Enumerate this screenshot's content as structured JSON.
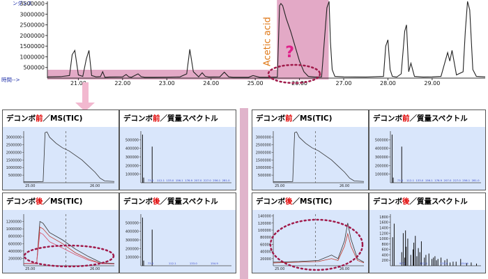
{
  "tic": {
    "ylabel_fragment": "ンダンス",
    "xlabel": "時間-->",
    "y_ticks": [
      "3500000",
      "3000000",
      "2500000",
      "2000000",
      "1500000",
      "1000000",
      "500000"
    ],
    "x_ticks": [
      "21.00",
      "22.00",
      "23.00",
      "24.00",
      "25.00",
      "26.00",
      "27.00",
      "28.00",
      "29.00"
    ],
    "annotation": "Acetic acid",
    "question": "?",
    "colors": {
      "line": "#222222",
      "highlight": "#d98cb3",
      "ellipse": "#a01a4a",
      "annotation": "#e07a1a",
      "question": "#e0208a"
    }
  },
  "chart_data": [
    {
      "type": "line",
      "title": "",
      "xlabel": "時間-->",
      "ylabel": "",
      "xlim": [
        20.3,
        30.2
      ],
      "ylim": [
        0,
        3600000
      ],
      "series": [
        {
          "x": [
            20.3,
            20.6,
            20.8,
            20.86,
            20.92,
            21.0,
            21.1,
            21.18,
            21.24,
            21.3,
            21.4,
            21.5,
            21.55,
            21.6,
            21.7,
            22.0,
            22.08,
            22.14,
            22.2,
            22.35,
            22.42,
            22.5,
            22.7,
            23.0,
            23.3,
            23.45,
            23.52,
            23.6,
            23.72,
            23.8,
            23.87,
            23.95,
            24.2,
            24.3,
            24.4,
            24.5,
            24.7,
            24.85,
            24.95,
            25.1,
            25.3,
            25.5,
            25.55,
            25.58,
            25.62,
            25.7,
            25.8,
            25.9,
            26.0,
            26.1,
            26.2,
            26.35,
            26.5,
            26.62,
            26.67,
            26.7,
            26.74,
            26.8,
            27.0,
            27.5,
            27.9,
            27.95,
            28.0,
            28.05,
            28.1,
            28.2,
            28.3,
            28.38,
            28.42,
            28.47,
            28.52,
            28.6,
            28.8,
            29.0,
            29.2,
            29.35,
            29.4,
            29.45,
            29.55,
            29.7,
            29.75,
            29.8,
            29.85,
            29.92,
            30.0,
            30.2
          ],
          "y": [
            60000,
            70000,
            120000,
            1100000,
            1300000,
            150000,
            80000,
            900000,
            1300000,
            120000,
            60000,
            70000,
            300000,
            40000,
            50000,
            60000,
            170000,
            60000,
            40000,
            200000,
            70000,
            40000,
            40000,
            45000,
            60000,
            200000,
            1350000,
            300000,
            60000,
            250000,
            80000,
            50000,
            60000,
            280000,
            60000,
            40000,
            40000,
            40000,
            120000,
            40000,
            40000,
            50000,
            3400000,
            3500000,
            3400000,
            2800000,
            2200000,
            1500000,
            800000,
            300000,
            80000,
            50000,
            60000,
            3300000,
            3600000,
            1700000,
            400000,
            80000,
            60000,
            50000,
            80000,
            1500000,
            1800000,
            400000,
            80000,
            50000,
            200000,
            2200000,
            2500000,
            300000,
            700000,
            80000,
            50000,
            60000,
            80000,
            1200000,
            800000,
            1300000,
            150000,
            300000,
            2200000,
            3600000,
            3200000,
            400000,
            80000,
            60000
          ]
        }
      ]
    },
    {
      "type": "line",
      "title": "デコンボ前／MS(TIC)",
      "xlim": [
        24.9,
        26.3
      ],
      "ylim": [
        0,
        3400000
      ],
      "x_ticks": [
        "25.00",
        "26.00"
      ],
      "y_ticks": [
        "3000000",
        "2500000",
        "2000000",
        "1500000",
        "1000000",
        "500000"
      ],
      "series": [
        {
          "x": [
            24.9,
            25.1,
            25.2,
            25.23,
            25.26,
            25.3,
            25.4,
            25.5,
            25.6,
            25.7,
            25.8,
            25.9,
            26.0,
            26.08,
            26.15,
            26.3
          ],
          "y": [
            60000,
            60000,
            80000,
            3300000,
            3350000,
            3000000,
            2600000,
            2300000,
            2100000,
            1800000,
            1500000,
            1100000,
            700000,
            300000,
            120000,
            80000
          ]
        }
      ]
    },
    {
      "type": "bar",
      "title": "デコンボ前／質量スペクトル",
      "xlim": [
        40,
        200
      ],
      "ylim": [
        0,
        600000
      ],
      "y_ticks": [
        "500000",
        "400000",
        "300000",
        "200000",
        "100000"
      ],
      "series": [
        {
          "x": [
            43,
            45,
            60
          ],
          "y": [
            560000,
            60000,
            420000
          ]
        }
      ],
      "labels": [
        "73.0",
        "112.1",
        "133.0",
        "156.1",
        "176.9",
        "207.0",
        "227.0",
        "256.1",
        "281.0"
      ]
    },
    {
      "type": "line",
      "title": "デコンボ後／MS(TIC)",
      "xlim": [
        24.9,
        26.3
      ],
      "ylim": [
        0,
        1400000
      ],
      "x_ticks": [
        "25.00",
        "26.00"
      ],
      "y_ticks": [
        "1200000",
        "1000000",
        "800000",
        "600000",
        "400000",
        "200000"
      ],
      "series": [
        {
          "x": [
            24.9,
            25.1,
            25.15,
            25.2,
            25.3,
            25.5,
            25.7,
            25.9,
            26.1,
            26.3
          ],
          "y": [
            60000,
            60000,
            1200000,
            1150000,
            900000,
            700000,
            450000,
            250000,
            80000,
            60000
          ]
        },
        {
          "x": [
            24.9,
            25.1,
            25.15,
            25.2,
            25.3,
            25.5,
            25.7,
            25.9,
            26.1,
            26.3
          ],
          "y": [
            60000,
            60000,
            1050000,
            1000000,
            800000,
            600000,
            350000,
            180000,
            60000,
            50000
          ]
        },
        {
          "x": [
            24.9,
            25.1,
            25.15,
            25.2,
            25.3,
            25.5,
            25.7,
            25.9,
            26.1,
            26.3
          ],
          "y": [
            60000,
            60000,
            900000,
            850000,
            650000,
            480000,
            300000,
            150000,
            60000,
            50000
          ]
        }
      ]
    },
    {
      "type": "bar",
      "title": "デコンボ後／質量スペクトル",
      "xlim": [
        40,
        200
      ],
      "ylim": [
        0,
        600000
      ],
      "y_ticks": [
        "500000",
        "400000",
        "300000",
        "200000",
        "100000"
      ],
      "series": [
        {
          "x": [
            43,
            45,
            60
          ],
          "y": [
            560000,
            60000,
            420000
          ]
        }
      ],
      "labels": [
        "73.0",
        "112.1",
        "133.0",
        "154.9"
      ]
    },
    {
      "type": "line",
      "title": "デコンボ前／MS(TIC)",
      "xlim": [
        24.9,
        26.3
      ],
      "ylim": [
        0,
        3400000
      ],
      "x_ticks": [
        "25.00",
        "26.00"
      ],
      "y_ticks": [
        "3000000",
        "2500000",
        "2000000",
        "1500000",
        "1000000",
        "500000"
      ],
      "series": [
        {
          "x": [
            24.9,
            25.1,
            25.2,
            25.23,
            25.26,
            25.3,
            25.4,
            25.5,
            25.6,
            25.7,
            25.8,
            25.9,
            26.0,
            26.08,
            26.15,
            26.3
          ],
          "y": [
            60000,
            60000,
            80000,
            3300000,
            3350000,
            3000000,
            2600000,
            2300000,
            2100000,
            1800000,
            1500000,
            1100000,
            700000,
            300000,
            120000,
            80000
          ]
        }
      ]
    },
    {
      "type": "bar",
      "title": "デコンボ前／質量スペクトル",
      "xlim": [
        40,
        200
      ],
      "ylim": [
        0,
        600000
      ],
      "y_ticks": [
        "500000",
        "400000",
        "300000",
        "200000",
        "100000"
      ],
      "series": [
        {
          "x": [
            43,
            45,
            60
          ],
          "y": [
            560000,
            60000,
            420000
          ]
        }
      ],
      "labels": [
        "73.0",
        "112.1",
        "133.0",
        "156.1",
        "176.9",
        "207.0",
        "227.0",
        "256.1",
        "281.0"
      ]
    },
    {
      "type": "line",
      "title": "デコンボ後／MS(TIC)",
      "xlim": [
        24.9,
        26.3
      ],
      "ylim": [
        0,
        145000
      ],
      "x_ticks": [
        "25.00",
        "26.00"
      ],
      "y_ticks": [
        "140000",
        "120000",
        "100000",
        "80000",
        "60000",
        "40000",
        "20000"
      ],
      "series": [
        {
          "x": [
            24.9,
            25.3,
            25.6,
            25.8,
            25.9,
            26.0,
            26.05,
            26.1,
            26.2,
            26.3
          ],
          "y": [
            10000,
            12000,
            15000,
            30000,
            20000,
            70000,
            120000,
            75000,
            20000,
            10000
          ]
        },
        {
          "x": [
            24.9,
            25.3,
            25.6,
            25.8,
            25.9,
            26.0,
            26.05,
            26.1,
            26.2,
            26.3
          ],
          "y": [
            8000,
            10000,
            12000,
            20000,
            15000,
            55000,
            90000,
            55000,
            15000,
            8000
          ]
        }
      ]
    },
    {
      "type": "bar",
      "title": "デコンボ後／質量スペクトル",
      "xlim": [
        40,
        160
      ],
      "ylim": [
        0,
        1900
      ],
      "y_ticks": [
        "1800",
        "1600",
        "1400",
        "1200",
        "1000",
        "800",
        "600",
        "400",
        "200"
      ],
      "series": [
        {
          "x": [
            43,
            45,
            55,
            57,
            59,
            60,
            61,
            63,
            67,
            70,
            71,
            73,
            75,
            77,
            79,
            81,
            85,
            87,
            91,
            95,
            97,
            99,
            101,
            103,
            107,
            112,
            115,
            119,
            123,
            127,
            133,
            141,
            147,
            154
          ],
          "y": [
            1050,
            1550,
            500,
            1200,
            300,
            1300,
            700,
            1000,
            400,
            600,
            850,
            1100,
            350,
            650,
            500,
            900,
            300,
            400,
            450,
            250,
            300,
            350,
            200,
            250,
            300,
            200,
            250,
            120,
            150,
            150,
            250,
            100,
            120,
            80
          ]
        }
      ],
      "labels": [
        "97.1",
        "112.1",
        "133.0",
        "154.9"
      ]
    }
  ],
  "panels": [
    {
      "pre": "デコンボ",
      "red": "前",
      "post": "／MS(TIC)"
    },
    {
      "pre": "デコンボ",
      "red": "前",
      "post": "／質量スペクトル"
    },
    {
      "pre": "デコンボ",
      "red": "後",
      "post": "／MS(TIC)"
    },
    {
      "pre": "デコンボ",
      "red": "後",
      "post": "／質量スペクトル"
    },
    {
      "pre": "デコンボ",
      "red": "前",
      "post": "／MS(TIC)"
    },
    {
      "pre": "デコンボ",
      "red": "前",
      "post": "／質量スペクトル"
    },
    {
      "pre": "デコンボ",
      "red": "後",
      "post": "／MS(TIC)"
    },
    {
      "pre": "デコンボ",
      "red": "後",
      "post": "／質量スペクトル"
    }
  ]
}
